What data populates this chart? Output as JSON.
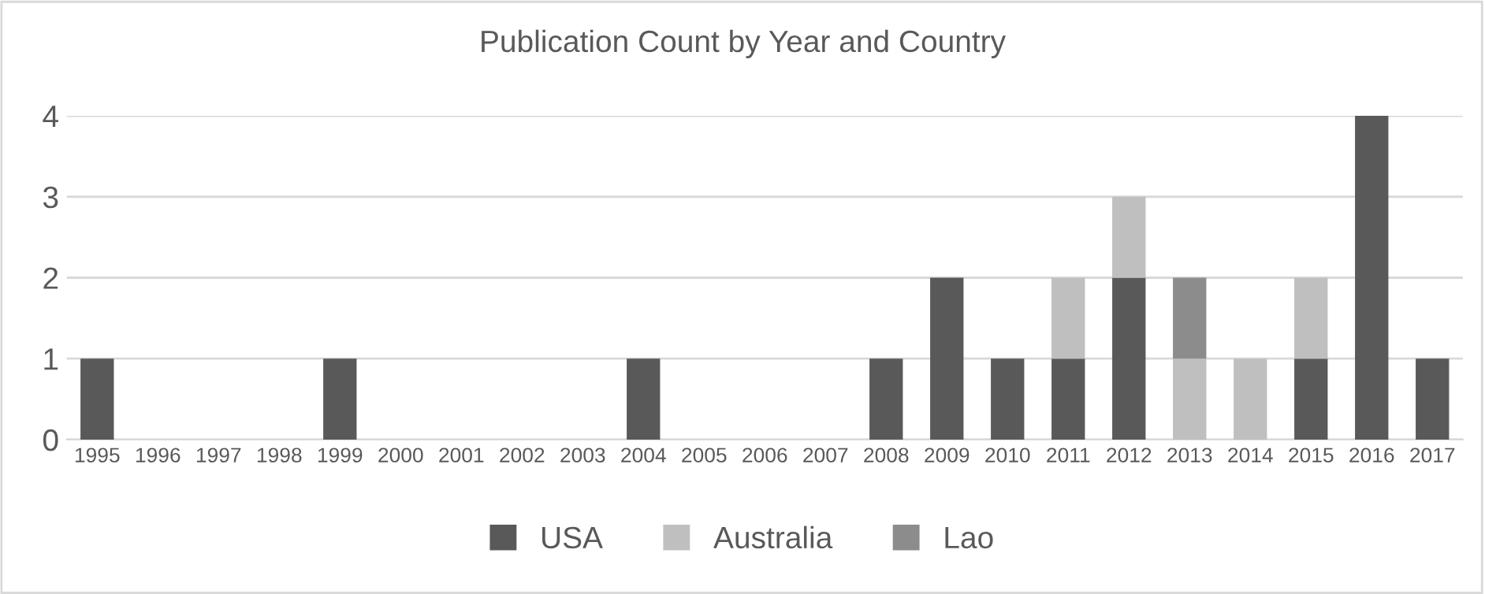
{
  "chart_data": {
    "type": "bar",
    "title": "Publication Count by Year and Country",
    "stacked": true,
    "categories": [
      "1995",
      "1996",
      "1997",
      "1998",
      "1999",
      "2000",
      "2001",
      "2002",
      "2003",
      "2004",
      "2005",
      "2006",
      "2007",
      "2008",
      "2009",
      "2010",
      "2011",
      "2012",
      "2013",
      "2014",
      "2015",
      "2016",
      "2017"
    ],
    "series": [
      {
        "name": "USA",
        "color": "#595959",
        "values": [
          1,
          0,
          0,
          0,
          1,
          0,
          0,
          0,
          0,
          1,
          0,
          0,
          0,
          1,
          2,
          1,
          1,
          2,
          0,
          0,
          1,
          4,
          1
        ]
      },
      {
        "name": "Australia",
        "color": "#bfbfbf",
        "values": [
          0,
          0,
          0,
          0,
          0,
          0,
          0,
          0,
          0,
          0,
          0,
          0,
          0,
          0,
          0,
          0,
          1,
          1,
          1,
          1,
          1,
          0,
          0
        ]
      },
      {
        "name": "Lao",
        "color": "#8c8c8c",
        "values": [
          0,
          0,
          0,
          0,
          0,
          0,
          0,
          0,
          0,
          0,
          0,
          0,
          0,
          0,
          0,
          0,
          0,
          0,
          1,
          0,
          0,
          0,
          0
        ]
      }
    ],
    "ylim": [
      0,
      4
    ],
    "yticks": [
      0,
      1,
      2,
      3,
      4
    ],
    "grid": "y",
    "legend": "bottom"
  }
}
